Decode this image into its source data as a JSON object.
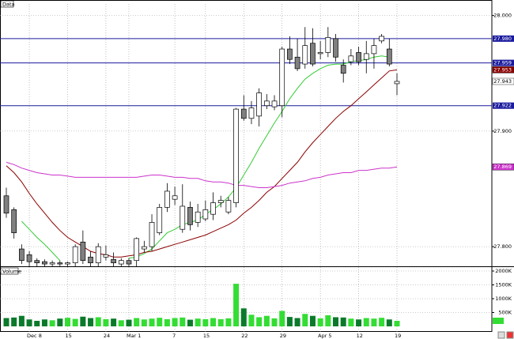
{
  "chart_data": [
    {
      "type": "candlestick",
      "title": "Data",
      "categories": [
        null,
        null,
        null,
        "Dec 8",
        null,
        null,
        null,
        null,
        "15",
        null,
        null,
        null,
        null,
        "24",
        null,
        null,
        "Mar 1",
        null,
        null,
        null,
        null,
        null,
        "7",
        null,
        null,
        null,
        "15",
        null,
        null,
        null,
        null,
        "22",
        null,
        null,
        null,
        null,
        "29",
        null,
        null,
        null,
        null,
        "Apr 5",
        null,
        null,
        null,
        null,
        "12",
        null,
        null,
        null,
        null,
        "19"
      ],
      "open": [
        27.844,
        27.832,
        27.798,
        27.793,
        27.788,
        27.787,
        27.785,
        27.786,
        27.785,
        27.786,
        27.804,
        27.791,
        27.786,
        27.791,
        27.789,
        27.785,
        27.788,
        27.788,
        27.798,
        27.8,
        27.812,
        27.834,
        27.841,
        27.815,
        27.834,
        27.821,
        27.824,
        27.828,
        27.838,
        27.83,
        27.838,
        27.919,
        27.911,
        27.913,
        27.922,
        27.921,
        27.922,
        27.971,
        27.964,
        27.958,
        27.976,
        27.967,
        27.968,
        27.98,
        27.957,
        27.96,
        27.968,
        27.962,
        27.967,
        27.978,
        27.971,
        27.941
      ],
      "high": [
        27.851,
        27.834,
        27.802,
        27.796,
        27.79,
        27.789,
        27.788,
        27.788,
        27.787,
        27.802,
        27.814,
        27.796,
        27.803,
        27.801,
        27.795,
        27.79,
        27.79,
        27.808,
        27.805,
        27.828,
        27.837,
        27.855,
        27.852,
        27.854,
        27.839,
        27.837,
        27.84,
        27.847,
        27.844,
        27.843,
        27.92,
        27.931,
        27.926,
        27.937,
        27.932,
        27.931,
        27.973,
        27.982,
        27.98,
        27.99,
        27.989,
        27.978,
        27.99,
        27.984,
        27.962,
        27.971,
        27.973,
        27.978,
        27.98,
        27.984,
        27.98,
        27.95
      ],
      "low": [
        27.825,
        27.807,
        27.785,
        27.783,
        27.783,
        27.783,
        27.783,
        27.783,
        27.783,
        27.783,
        27.785,
        27.783,
        27.783,
        27.788,
        27.783,
        27.783,
        27.783,
        27.783,
        27.795,
        27.796,
        27.81,
        27.83,
        27.836,
        27.812,
        27.814,
        27.817,
        27.822,
        27.823,
        27.834,
        27.828,
        27.834,
        27.909,
        27.906,
        27.904,
        27.919,
        27.918,
        27.912,
        27.958,
        27.952,
        27.954,
        27.956,
        27.962,
        27.964,
        27.96,
        27.942,
        27.957,
        27.957,
        27.95,
        27.954,
        27.976,
        27.956,
        27.931
      ],
      "close": [
        27.829,
        27.812,
        27.788,
        27.787,
        27.786,
        27.785,
        27.786,
        27.785,
        27.786,
        27.8,
        27.788,
        27.786,
        27.8,
        27.793,
        27.786,
        27.788,
        27.785,
        27.807,
        27.8,
        27.821,
        27.834,
        27.848,
        27.844,
        27.835,
        27.819,
        27.83,
        27.832,
        27.838,
        27.84,
        27.84,
        27.919,
        27.911,
        27.92,
        27.933,
        27.926,
        27.926,
        27.971,
        27.962,
        27.954,
        27.974,
        27.958,
        27.968,
        27.981,
        27.964,
        27.95,
        27.965,
        27.96,
        27.967,
        27.974,
        27.982,
        27.958,
        27.943
      ],
      "up_color": "#ffffff",
      "down_color": "#808080",
      "lines": [
        {
          "color": "#33cc33",
          "values": [
            null,
            null,
            27.822,
            27.815,
            27.808,
            27.802,
            27.795,
            27.788,
            null,
            null,
            null,
            null,
            null,
            null,
            null,
            null,
            27.79,
            27.791,
            27.794,
            27.798,
            27.805,
            27.812,
            27.815,
            27.819,
            27.821,
            27.823,
            27.828,
            27.832,
            27.837,
            27.843,
            27.851,
            27.862,
            27.873,
            27.885,
            27.896,
            27.907,
            27.917,
            27.928,
            27.937,
            27.945,
            27.95,
            27.954,
            27.957,
            27.958,
            27.958,
            27.96,
            27.961,
            27.962,
            27.964,
            27.965,
            27.964,
            null
          ]
        },
        {
          "color": "#8b0000",
          "values": [
            27.87,
            27.864,
            27.856,
            27.846,
            27.837,
            27.829,
            27.821,
            27.814,
            27.808,
            27.804,
            27.8,
            27.796,
            27.794,
            27.793,
            27.791,
            27.791,
            27.792,
            27.793,
            27.795,
            27.796,
            27.798,
            27.8,
            27.802,
            27.804,
            27.806,
            27.808,
            27.81,
            27.813,
            27.816,
            27.819,
            27.823,
            27.829,
            27.834,
            27.84,
            27.847,
            27.852,
            27.859,
            27.866,
            27.873,
            27.882,
            27.89,
            27.897,
            27.904,
            27.911,
            27.917,
            27.922,
            27.928,
            27.934,
            27.94,
            27.946,
            27.952,
            27.953
          ]
        },
        {
          "color": "#cc33cc",
          "values": [
            27.873,
            27.871,
            27.868,
            27.866,
            27.864,
            27.863,
            27.862,
            27.862,
            27.861,
            27.86,
            27.86,
            27.86,
            27.86,
            27.86,
            27.86,
            27.86,
            27.86,
            27.86,
            27.861,
            27.862,
            27.862,
            27.861,
            27.86,
            27.86,
            27.859,
            27.859,
            27.857,
            27.856,
            27.856,
            27.855,
            27.853,
            27.853,
            27.852,
            27.851,
            27.851,
            27.852,
            27.853,
            27.855,
            27.856,
            27.857,
            27.859,
            27.86,
            27.862,
            27.863,
            27.864,
            27.864,
            27.866,
            27.866,
            27.867,
            27.868,
            27.868,
            27.869
          ]
        }
      ],
      "hlines": [
        {
          "value": 27.98,
          "label": "27.980"
        },
        27.959,
        27.922
      ],
      "hline_color": "#1a1a9e",
      "ylim": [
        27.783,
        28.01
      ],
      "yticks": [
        {
          "value": 27.8,
          "label": "27.800"
        },
        {
          "value": 27.9,
          "label": "27.900"
        },
        {
          "value": 28,
          "label": "28.000"
        }
      ],
      "grid": true
    },
    {
      "type": "volume",
      "title": "Volume",
      "values": [
        300,
        320,
        380,
        250,
        200,
        250,
        220,
        280,
        310,
        270,
        350,
        300,
        330,
        260,
        280,
        220,
        240,
        300,
        250,
        280,
        310,
        260,
        300,
        320,
        240,
        280,
        260,
        300,
        260,
        290,
        1540,
        650,
        420,
        330,
        380,
        290,
        560,
        340,
        300,
        450,
        380,
        290,
        400,
        330,
        320,
        280,
        250,
        300,
        280,
        310,
        250,
        200
      ],
      "up_color": "#33dd33",
      "down_color": "#0a7a2a",
      "ylim": [
        -200,
        2143
      ],
      "yticks": [
        {
          "value": 500,
          "label": "500K"
        },
        {
          "value": 1000,
          "label": "1000K"
        },
        {
          "value": 1500,
          "label": "1500K"
        },
        {
          "value": 2000,
          "label": "2000K"
        }
      ],
      "grid": true
    }
  ]
}
